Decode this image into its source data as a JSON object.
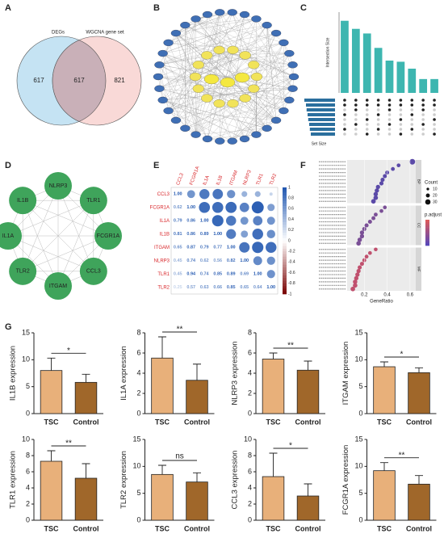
{
  "panel_labels": [
    "A",
    "B",
    "C",
    "D",
    "E",
    "F",
    "G"
  ],
  "venn": {
    "sets": [
      "DEGs",
      "WGCNA gene set"
    ],
    "values": [
      617,
      617,
      821
    ],
    "colors": [
      "#bfe0f2",
      "#f6c9c6"
    ]
  },
  "ppi": {
    "nodes": [
      "NLRP3",
      "TLR1",
      "FCGR1A",
      "CCL3",
      "ITGAM",
      "TLR2",
      "IL1A",
      "IL1B"
    ],
    "color": "#3fa45b"
  },
  "chart_data": [
    {
      "type": "upset",
      "ylabel": "Intersection Size",
      "xlabel": "Set Size",
      "color": "#3db6b0",
      "set_color": "#2b6f9e",
      "values": [
        625,
        555,
        515,
        390,
        280,
        270,
        210,
        120,
        120
      ],
      "ylim": [
        0,
        700
      ],
      "set_sizes": [
        95,
        90,
        88,
        85,
        83,
        80,
        78,
        75
      ],
      "set_xlim": [
        0,
        100
      ]
    },
    {
      "type": "corrplot",
      "categories": [
        "CCL3",
        "FCGR1A",
        "IL1A",
        "IL1B",
        "ITGAM",
        "NLRP3",
        "TLR1",
        "TLR2"
      ],
      "values": [
        [
          1.0,
          0.62,
          0.79,
          0.81,
          0.65,
          0.45,
          0.45,
          0.25
        ],
        [
          0.62,
          1.0,
          0.86,
          0.86,
          0.87,
          0.74,
          0.94,
          0.57
        ],
        [
          0.79,
          0.86,
          1.0,
          0.89,
          0.79,
          0.62,
          0.74,
          0.63
        ],
        [
          0.81,
          0.86,
          0.89,
          1.0,
          0.77,
          0.56,
          0.85,
          0.66
        ],
        [
          0.65,
          0.87,
          0.79,
          0.77,
          1.0,
          0.82,
          0.89,
          0.85
        ],
        [
          0.45,
          0.74,
          0.62,
          0.56,
          0.82,
          1.0,
          0.69,
          0.65
        ],
        [
          0.45,
          0.94,
          0.74,
          0.85,
          0.89,
          0.69,
          1.0,
          0.64
        ],
        [
          0.25,
          0.57,
          0.63,
          0.66,
          0.85,
          0.65,
          0.64,
          1.0
        ]
      ],
      "value_labels": [
        [
          "1.00",
          "0.62",
          "0.79",
          "0.81",
          "0.65",
          "0.45",
          "0.45",
          "0.25"
        ],
        [
          "0.62",
          "1.00",
          "0.86",
          "0.86",
          "0.87",
          "0.74",
          "0.94",
          "0.57"
        ],
        [
          "0.79",
          "0.86",
          "1.00",
          "0.89",
          "0.79",
          "0.62",
          "0.74",
          "0.63"
        ],
        [
          "0.81",
          "0.86",
          "0.89",
          "1.00",
          "0.77",
          "0.56",
          "0.85",
          "0.66"
        ],
        [
          "0.65",
          "0.87",
          "0.79",
          "0.77",
          "1.00",
          "0.82",
          "0.89",
          "0.85"
        ],
        [
          "0.45",
          "0.74",
          "0.62",
          "0.56",
          "0.82",
          "1.00",
          "0.69",
          "0.65"
        ],
        [
          "0.45",
          "0.94",
          "0.74",
          "0.85",
          "0.89",
          "0.69",
          "1.00",
          "0.64"
        ],
        [
          "0.25",
          "0.57",
          "0.63",
          "0.66",
          "0.85",
          "0.65",
          "0.64",
          "1.00"
        ]
      ],
      "clim": [
        -1,
        1
      ],
      "colorbar_ticks": [
        1,
        0.8,
        0.6,
        0.4,
        0.2,
        0,
        -0.2,
        -0.4,
        -0.6,
        -0.8,
        -1
      ]
    },
    {
      "type": "dotplot",
      "xlabel": "GeneRatio",
      "xlim": [
        0.05,
        0.65
      ],
      "xticks": [
        0.2,
        0.4,
        0.6
      ],
      "facets": [
        {
          "name": "BP",
          "values": [
            0.62,
            0.5,
            0.45,
            0.4,
            0.38,
            0.36,
            0.35,
            0.32,
            0.31,
            0.3,
            0.3,
            0.28
          ]
        },
        {
          "name": "CC",
          "values": [
            0.38,
            0.35,
            0.3,
            0.28,
            0.25,
            0.22,
            0.2,
            0.18,
            0.18,
            0.16,
            0.15
          ]
        },
        {
          "name": "MF",
          "values": [
            0.3,
            0.25,
            0.22,
            0.2,
            0.18,
            0.16,
            0.15,
            0.14,
            0.13,
            0.12,
            0.12,
            0.1
          ]
        }
      ],
      "size_title": "Count",
      "size_ticks": [
        10,
        20,
        30
      ],
      "color_title": "p.adjust"
    },
    {
      "type": "bar",
      "ylabel": "IL1B expression",
      "categories": [
        "TSC",
        "Control"
      ],
      "values": [
        8.0,
        5.8
      ],
      "errors": [
        2.3,
        1.5
      ],
      "colors": [
        "#e8b07a",
        "#a0672a"
      ],
      "ylim": [
        0,
        15
      ],
      "yticks": [
        0,
        5,
        10,
        15
      ],
      "annotation": "*"
    },
    {
      "type": "bar",
      "ylabel": "IL1A expression",
      "categories": [
        "TSC",
        "Control"
      ],
      "values": [
        5.5,
        3.3
      ],
      "errors": [
        2.1,
        1.6
      ],
      "colors": [
        "#e8b07a",
        "#a0672a"
      ],
      "ylim": [
        0,
        8
      ],
      "yticks": [
        0,
        2,
        4,
        6,
        8
      ],
      "annotation": "**"
    },
    {
      "type": "bar",
      "ylabel": "NLRP3 expression",
      "categories": [
        "TSC",
        "Control"
      ],
      "values": [
        5.4,
        4.3
      ],
      "errors": [
        0.6,
        0.9
      ],
      "colors": [
        "#e8b07a",
        "#a0672a"
      ],
      "ylim": [
        0,
        8
      ],
      "yticks": [
        0,
        2,
        4,
        6,
        8
      ],
      "annotation": "**"
    },
    {
      "type": "bar",
      "ylabel": "ITGAM expression",
      "categories": [
        "TSC",
        "Control"
      ],
      "values": [
        8.7,
        7.6
      ],
      "errors": [
        0.9,
        0.9
      ],
      "colors": [
        "#e8b07a",
        "#a0672a"
      ],
      "ylim": [
        0,
        15
      ],
      "yticks": [
        0,
        5,
        10,
        15
      ],
      "annotation": "*"
    },
    {
      "type": "bar",
      "ylabel": "TLR1 expression",
      "categories": [
        "TSC",
        "Control"
      ],
      "values": [
        7.3,
        5.2
      ],
      "errors": [
        1.3,
        1.8
      ],
      "colors": [
        "#e8b07a",
        "#a0672a"
      ],
      "ylim": [
        0,
        10
      ],
      "yticks": [
        0,
        2,
        4,
        6,
        8,
        10
      ],
      "annotation": "**"
    },
    {
      "type": "bar",
      "ylabel": "TLR2 expression",
      "categories": [
        "TSC",
        "Control"
      ],
      "values": [
        8.5,
        7.1
      ],
      "errors": [
        1.7,
        1.7
      ],
      "colors": [
        "#e8b07a",
        "#a0672a"
      ],
      "ylim": [
        0,
        15
      ],
      "yticks": [
        0,
        5,
        10,
        15
      ],
      "annotation": "ns"
    },
    {
      "type": "bar",
      "ylabel": "CCL3 expression",
      "categories": [
        "TSC",
        "Control"
      ],
      "values": [
        5.4,
        3.0
      ],
      "errors": [
        2.9,
        1.5
      ],
      "colors": [
        "#e8b07a",
        "#a0672a"
      ],
      "ylim": [
        0,
        10
      ],
      "yticks": [
        0,
        2,
        4,
        6,
        8,
        10
      ],
      "annotation": "*"
    },
    {
      "type": "bar",
      "ylabel": "FCGR1A expression",
      "categories": [
        "TSC",
        "Control"
      ],
      "values": [
        9.2,
        6.7
      ],
      "errors": [
        1.5,
        1.6
      ],
      "colors": [
        "#e8b07a",
        "#a0672a"
      ],
      "ylim": [
        0,
        15
      ],
      "yticks": [
        0,
        5,
        10,
        15
      ],
      "annotation": "**"
    }
  ]
}
